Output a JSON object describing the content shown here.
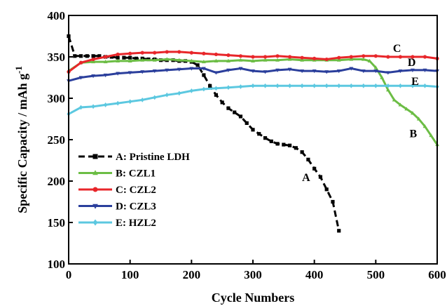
{
  "chart_data": {
    "type": "line",
    "xlabel": "Cycle Numbers",
    "ylabel": "Specific Capacity / mAh g",
    "ylabel_superscript": "-1",
    "xlim": [
      0,
      600
    ],
    "ylim": [
      100,
      400
    ],
    "x_ticks": [
      "0",
      "100",
      "200",
      "300",
      "400",
      "500",
      "600"
    ],
    "y_ticks": [
      "100",
      "150",
      "200",
      "250",
      "300",
      "350",
      "400"
    ],
    "grid": false,
    "legend_position": "bottom-left",
    "series": [
      {
        "name": "A: Pristine LDH",
        "label": "A",
        "color": "#000000",
        "marker": "square",
        "dash": "dash",
        "x": [
          0,
          10,
          20,
          30,
          40,
          50,
          60,
          70,
          80,
          90,
          100,
          110,
          120,
          130,
          140,
          150,
          160,
          170,
          180,
          190,
          200,
          210,
          220,
          230,
          240,
          250,
          260,
          270,
          280,
          290,
          300,
          310,
          320,
          330,
          340,
          350,
          360,
          370,
          380,
          390,
          400,
          410,
          420,
          430,
          440
        ],
        "y": [
          375,
          351,
          351,
          351,
          351,
          351,
          350,
          350,
          349,
          349,
          349,
          348,
          348,
          347,
          347,
          346,
          346,
          346,
          345,
          345,
          344,
          340,
          328,
          315,
          304,
          295,
          288,
          283,
          278,
          270,
          262,
          257,
          252,
          248,
          245,
          244,
          243,
          240,
          235,
          226,
          215,
          205,
          190,
          175,
          140
        ]
      },
      {
        "name": "B: CZL1",
        "label": "B",
        "color": "#6cbd45",
        "marker": "triangle-up",
        "dash": "solid",
        "x": [
          0,
          20,
          40,
          60,
          80,
          100,
          120,
          140,
          160,
          180,
          200,
          220,
          240,
          260,
          280,
          300,
          320,
          340,
          360,
          380,
          400,
          420,
          440,
          460,
          480,
          490,
          500,
          510,
          520,
          530,
          540,
          550,
          560,
          570,
          580,
          590,
          600
        ],
        "y": [
          333,
          343,
          344,
          344,
          345,
          345,
          346,
          346,
          347,
          346,
          345,
          344,
          345,
          345,
          346,
          345,
          346,
          346,
          347,
          346,
          346,
          346,
          346,
          347,
          347,
          345,
          337,
          325,
          310,
          298,
          292,
          287,
          282,
          275,
          266,
          255,
          244
        ]
      },
      {
        "name": "C: CZL2",
        "label": "C",
        "color": "#e8262a",
        "marker": "circle",
        "dash": "solid",
        "x": [
          0,
          20,
          40,
          60,
          80,
          100,
          120,
          140,
          160,
          180,
          200,
          220,
          240,
          260,
          280,
          300,
          320,
          340,
          360,
          380,
          400,
          420,
          440,
          460,
          480,
          500,
          520,
          540,
          560,
          580,
          600
        ],
        "y": [
          332,
          343,
          347,
          350,
          353,
          354,
          355,
          355,
          356,
          356,
          355,
          354,
          353,
          352,
          351,
          350,
          350,
          351,
          350,
          349,
          348,
          347,
          349,
          350,
          351,
          351,
          350,
          350,
          350,
          350,
          348
        ]
      },
      {
        "name": "D: CZL3",
        "label": "D",
        "color": "#2b3f9c",
        "marker": "triangle-down",
        "dash": "solid",
        "x": [
          0,
          20,
          40,
          60,
          80,
          100,
          120,
          140,
          160,
          180,
          200,
          220,
          240,
          260,
          280,
          300,
          320,
          340,
          360,
          380,
          400,
          420,
          440,
          460,
          480,
          500,
          520,
          540,
          560,
          580,
          600
        ],
        "y": [
          321,
          325,
          327,
          328,
          330,
          331,
          332,
          333,
          334,
          335,
          336,
          336,
          331,
          334,
          336,
          333,
          332,
          334,
          335,
          333,
          333,
          332,
          333,
          336,
          333,
          333,
          331,
          333,
          334,
          334,
          333
        ]
      },
      {
        "name": "E: HZL2",
        "label": "E",
        "color": "#5cc8e0",
        "marker": "diamond",
        "dash": "solid",
        "x": [
          0,
          20,
          40,
          60,
          80,
          100,
          120,
          140,
          160,
          180,
          200,
          220,
          240,
          260,
          280,
          300,
          320,
          340,
          360,
          380,
          400,
          420,
          440,
          460,
          480,
          500,
          520,
          540,
          560,
          580,
          600
        ],
        "y": [
          281,
          289,
          290,
          292,
          294,
          296,
          298,
          301,
          304,
          306,
          309,
          311,
          312,
          313,
          314,
          315,
          315,
          315,
          315,
          315,
          315,
          315,
          315,
          315,
          315,
          315,
          315,
          315,
          315,
          315,
          314
        ]
      }
    ],
    "annotations": [
      {
        "text": "A",
        "x": 380,
        "y": 200
      },
      {
        "text": "B",
        "x": 555,
        "y": 253
      },
      {
        "text": "C",
        "x": 528,
        "y": 356
      },
      {
        "text": "D",
        "x": 552,
        "y": 339
      },
      {
        "text": "E",
        "x": 558,
        "y": 316
      }
    ]
  }
}
